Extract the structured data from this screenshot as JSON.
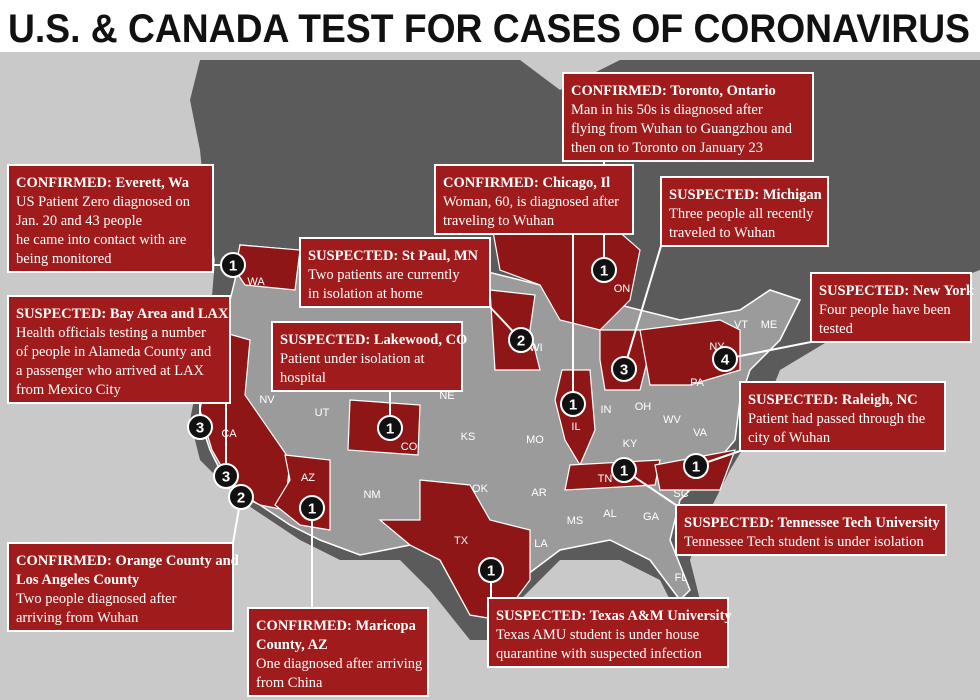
{
  "title": "U.S. & CANADA TEST FOR CASES OF CORONAVIRUS",
  "callouts": [
    {
      "heading": [
        "CONFIRMED: Everett, Wa"
      ],
      "body": [
        "US Patient Zero diagnosed on",
        "Jan. 20 and 43 people",
        "he came into contact with are",
        "being monitored"
      ]
    },
    {
      "heading": [
        "SUSPECTED: Bay Area and LAX"
      ],
      "body": [
        "Health officials testing a number",
        "of people in Alameda County and",
        "a passenger who arrived at LAX",
        "from Mexico City"
      ]
    },
    {
      "heading": [
        "CONFIRMED: Orange County and",
        "Los Angeles County"
      ],
      "body": [
        "Two people diagnosed after",
        "arriving from Wuhan"
      ]
    },
    {
      "heading": [
        "CONFIRMED: Maricopa",
        "County, AZ"
      ],
      "body": [
        "One diagnosed after arriving",
        "from China"
      ]
    },
    {
      "heading": [
        "SUSPECTED: Lakewood, CO"
      ],
      "body": [
        "Patient under isolation at",
        "hospital"
      ]
    },
    {
      "heading": [
        "SUSPECTED: St Paul, MN"
      ],
      "body": [
        "Two patients are currently",
        "in isolation at home"
      ]
    },
    {
      "heading": [
        "CONFIRMED: Chicago, Il"
      ],
      "body": [
        "Woman, 60, is diagnosed after",
        "traveling to Wuhan"
      ]
    },
    {
      "heading": [
        "CONFIRMED: Toronto, Ontario"
      ],
      "body": [
        "Man in his 50s is diagnosed after",
        "flying from Wuhan to Guangzhou and",
        "then on to Toronto on January 23"
      ]
    },
    {
      "heading": [
        "SUSPECTED: Michigan"
      ],
      "body": [
        "Three people all recently",
        "traveled to Wuhan"
      ]
    },
    {
      "heading": [
        "SUSPECTED: New York"
      ],
      "body": [
        "Four people have been",
        "tested"
      ]
    },
    {
      "heading": [
        "SUSPECTED: Raleigh, NC"
      ],
      "body": [
        "Patient had passed through the",
        "city of Wuhan"
      ]
    },
    {
      "heading": [
        "SUSPECTED: Tennessee Tech University"
      ],
      "body": [
        "Tennessee Tech student is under isolation"
      ]
    },
    {
      "heading": [
        "SUSPECTED: Texas A&M University"
      ],
      "body": [
        "Texas AMU student is under house",
        "quarantine with suspected infection"
      ]
    }
  ],
  "markers": [
    1,
    3,
    3,
    2,
    1,
    1,
    2,
    1,
    1,
    3,
    4,
    1,
    1,
    1
  ],
  "state_labels": [
    "WA",
    "CA",
    "NV",
    "UT",
    "AZ",
    "NM",
    "CO",
    "KS",
    "OK",
    "TX",
    "NE",
    "MO",
    "AR",
    "LA",
    "MS",
    "AL",
    "GA",
    "SC",
    "FL",
    "TN",
    "KY",
    "IL",
    "IN",
    "OH",
    "WV",
    "VA",
    "PA",
    "NY",
    "WI",
    "VT",
    "ME",
    "ON"
  ]
}
